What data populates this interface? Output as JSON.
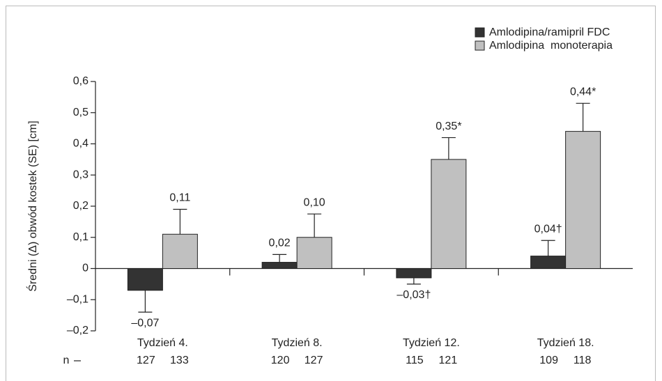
{
  "chart_data": {
    "type": "bar",
    "y_label": "Średni (Δ) obwód kostek (SE) [cm]",
    "categories": [
      "Tydzień 4.",
      "Tydzień 8.",
      "Tydzień 12.",
      "Tydzień 18."
    ],
    "n_label": "n",
    "series": [
      {
        "name": "Amlodipina/ramipril FDC",
        "color": "#333333",
        "values": [
          -0.07,
          0.02,
          -0.03,
          0.04
        ],
        "value_labels": [
          "–0,07",
          "0,02",
          "–0,03†",
          "0,04†"
        ],
        "errors": [
          0.07,
          0.025,
          0.02,
          0.05
        ],
        "n": [
          127,
          120,
          115,
          109
        ]
      },
      {
        "name": "Amlodipina  monoterapia",
        "color": "#c0c0c0",
        "values": [
          0.11,
          0.1,
          0.35,
          0.44
        ],
        "value_labels": [
          "0,11",
          "0,10",
          "0,35*",
          "0,44*"
        ],
        "errors": [
          0.08,
          0.075,
          0.07,
          0.09
        ],
        "n": [
          133,
          127,
          121,
          118
        ]
      }
    ],
    "ylim": [
      -0.2,
      0.6
    ],
    "yticks": [
      {
        "value": -0.2,
        "label": "–0,2"
      },
      {
        "value": -0.1,
        "label": "–0,1"
      },
      0,
      {
        "value": 0.1,
        "label": "0,1"
      },
      {
        "value": 0.2,
        "label": "0,2"
      },
      {
        "value": 0.3,
        "label": "0,3"
      },
      {
        "value": 0.4,
        "label": "0,4"
      },
      {
        "value": 0.5,
        "label": "0,5"
      },
      {
        "value": 0.6,
        "label": "0,6"
      }
    ],
    "legend": "top-right"
  }
}
